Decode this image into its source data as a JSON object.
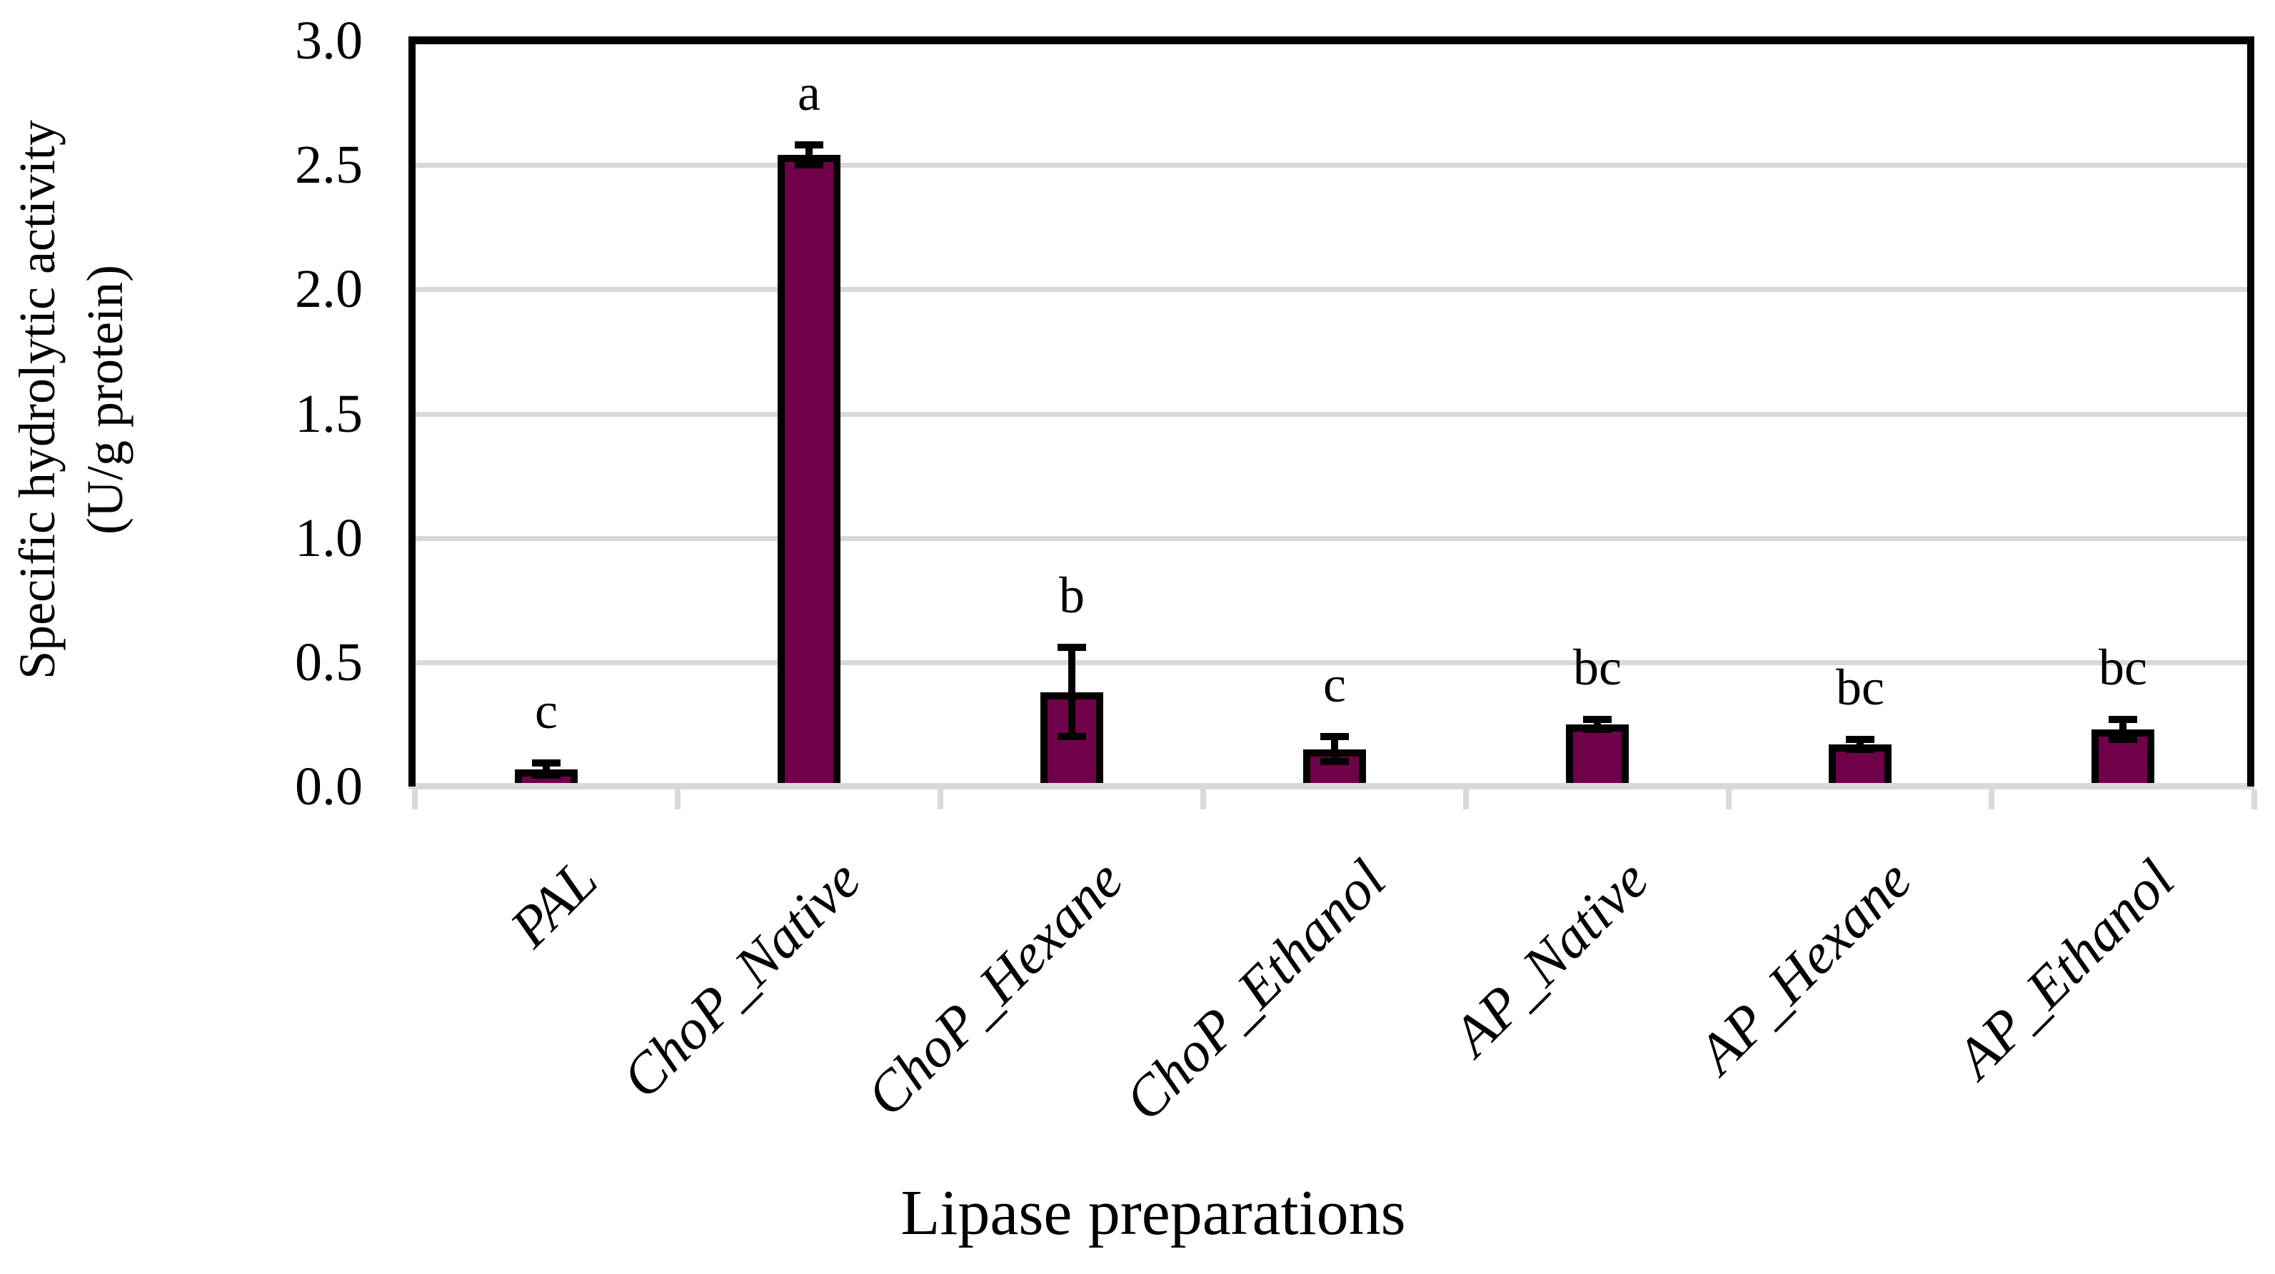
{
  "chart_data": {
    "type": "bar",
    "title": "",
    "xlabel": "Lipase preparations",
    "ylabel_line1": "Specific hydrolytic activity",
    "ylabel_line2": "(U/g protein)",
    "categories": [
      "PAL",
      "ChoP_Native",
      "ChoP_Hexane",
      "ChoP_Ethanol",
      "AP_Native",
      "AP_Hexane",
      "AP_Ethanol"
    ],
    "values": [
      0.07,
      2.54,
      0.38,
      0.15,
      0.25,
      0.17,
      0.23
    ],
    "errors": [
      0.025,
      0.04,
      0.18,
      0.05,
      0.02,
      0.02,
      0.04
    ],
    "sig_letters": [
      "c",
      "a",
      "b",
      "c",
      "bc",
      "bc",
      "bc"
    ],
    "yticks": [
      3.0,
      2.5,
      2.0,
      1.5,
      1.0,
      0.5,
      0.0
    ],
    "ytick_labels": [
      "3.0",
      "2.5",
      "2.0",
      "1.5",
      "1.0",
      "0.5",
      "0.0"
    ],
    "ylim": [
      0.0,
      3.0
    ],
    "grid": true,
    "legend_position": "none",
    "error_bars": true,
    "colors": {
      "bar_fill": "#71004B",
      "bar_border": "#000000",
      "gridline": "#D9D9D9",
      "baseline": "#D9D9D9",
      "axis_line": "#000000",
      "text": "#000000",
      "background": "#FFFFFF"
    }
  }
}
